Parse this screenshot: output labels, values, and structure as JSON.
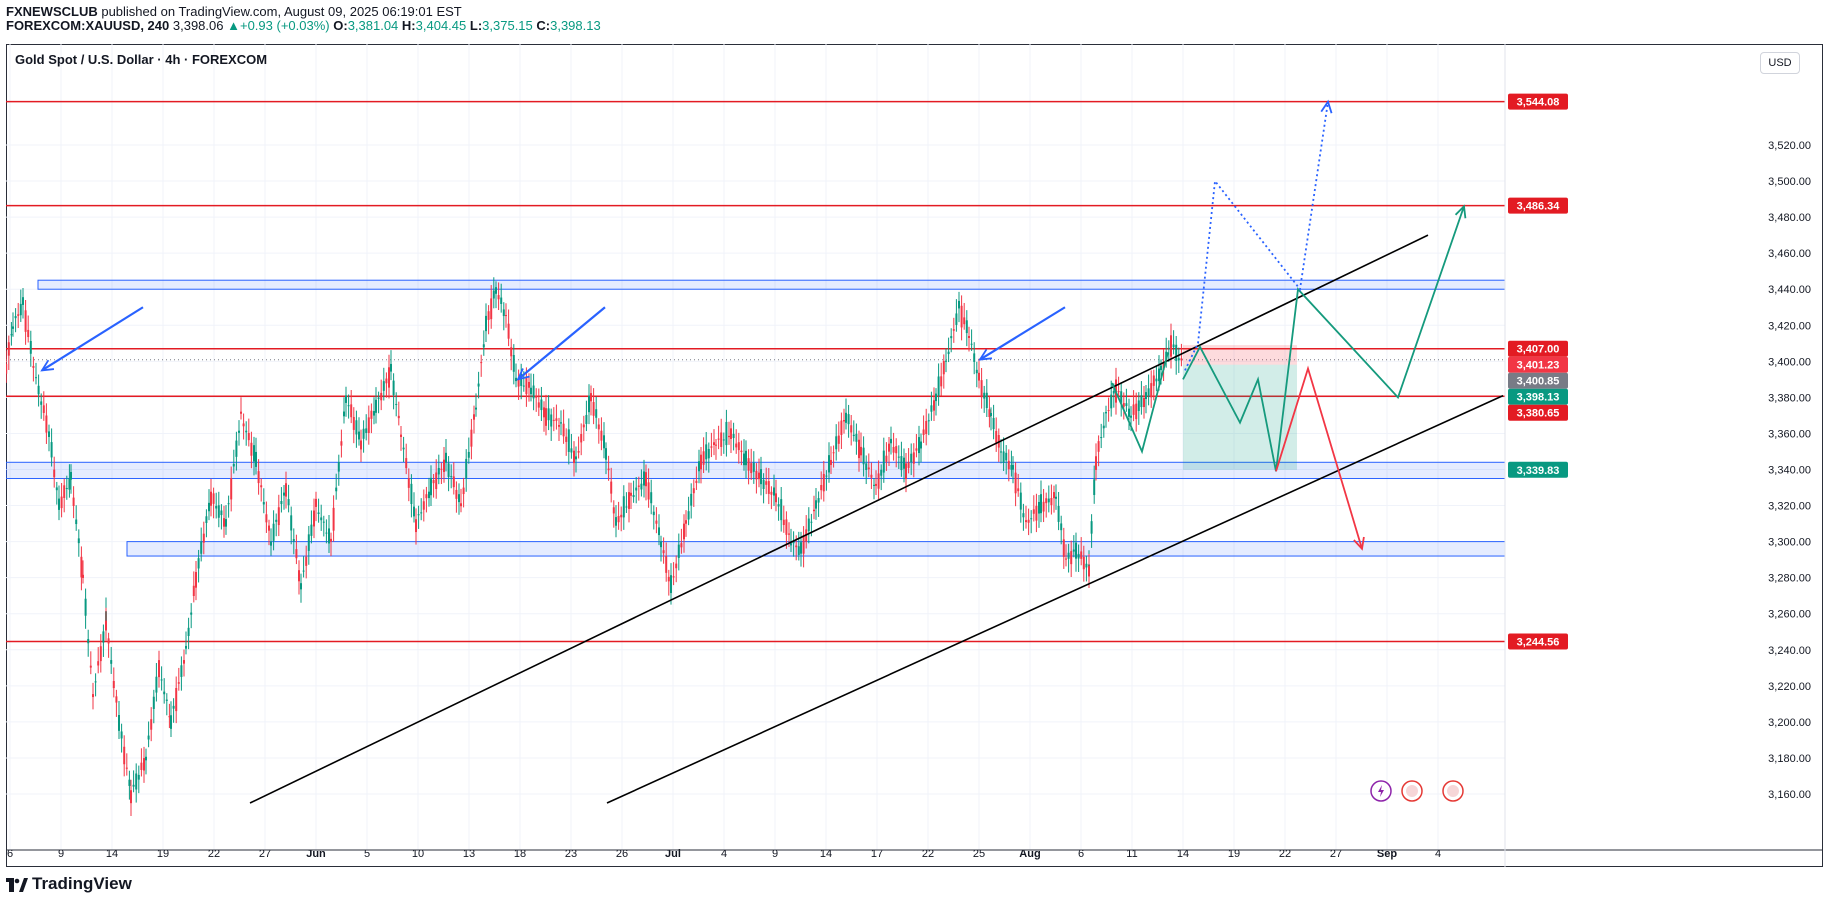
{
  "header": {
    "publisher": "FXNEWSCLUB",
    "published_text": "published on TradingView.com, August 09, 2025 06:19:01 EST",
    "symbol": "FOREXCOM:XAUUSD, 240",
    "price": "3,398.06",
    "change": "+0.93 (+0.03%)",
    "o_label": "O:",
    "o_value": "3,381.04",
    "h_label": "H:",
    "h_value": "3,404.45",
    "l_label": "L:",
    "l_value": "3,375.15",
    "c_label": "C:",
    "c_value": "3,398.13"
  },
  "chart_title": "Gold Spot / U.S. Dollar · 4h · FOREXCOM",
  "currency_button": "USD",
  "footer": {
    "brand": "TradingView"
  },
  "colors": {
    "up": "#089981",
    "down": "#f23645",
    "level": "#e31b23",
    "zone": "#2962ff",
    "projection_green": "#159a7d",
    "projection_blue": "#2962ff",
    "channel": "#000000"
  },
  "chart_data": {
    "type": "line",
    "title": "Gold Spot / U.S. Dollar · 4h · FOREXCOM",
    "ylim": [
      3145,
      3565
    ],
    "y_ticks": [
      3160,
      3180,
      3200,
      3220,
      3240,
      3260,
      3280,
      3300,
      3320,
      3340,
      3360,
      3380,
      3400,
      3420,
      3440,
      3460,
      3480,
      3500,
      3520
    ],
    "y_tick_labels": [
      "3,160.00",
      "3,180.00",
      "3,200.00",
      "3,220.00",
      "3,240.00",
      "3,260.00",
      "3,280.00",
      "3,300.00",
      "3,320.00",
      "3,340.00",
      "3,360.00",
      "3,380.00",
      "3,400.00",
      "3,420.00",
      "3,440.00",
      "3,460.00",
      "3,480.00",
      "3,500.00",
      "3,520.00"
    ],
    "x_ticks": [
      "6",
      "9",
      "14",
      "19",
      "22",
      "27",
      "Jun",
      "5",
      "10",
      "13",
      "18",
      "23",
      "26",
      "Jul",
      "4",
      "9",
      "14",
      "17",
      "22",
      "25",
      "Aug",
      "6",
      "11",
      "14",
      "19",
      "22",
      "27",
      "Sep",
      "4"
    ],
    "price_levels": [
      {
        "value": 3544.08,
        "label": "3,544.08",
        "kind": "level"
      },
      {
        "value": 3486.34,
        "label": "3,486.34",
        "kind": "level"
      },
      {
        "value": 3407.0,
        "label": "3,407.00",
        "kind": "level"
      },
      {
        "value": 3401.23,
        "label": "3,401.23",
        "kind": "stop"
      },
      {
        "value": 3400.85,
        "label": "3,400.85",
        "kind": "grey"
      },
      {
        "value": 3398.13,
        "label": "3,398.13",
        "kind": "last"
      },
      {
        "value": 3380.65,
        "label": "3,380.65",
        "kind": "level"
      },
      {
        "value": 3339.83,
        "label": "3,339.83",
        "kind": "target"
      },
      {
        "value": 3244.56,
        "label": "3,244.56",
        "kind": "level"
      }
    ],
    "zones": [
      [
        3440,
        3445
      ],
      [
        3335,
        3344
      ],
      [
        3292,
        3300
      ]
    ],
    "price_path": [
      [
        0,
        3380
      ],
      [
        12,
        3420
      ],
      [
        22,
        3432
      ],
      [
        35,
        3390
      ],
      [
        48,
        3360
      ],
      [
        58,
        3320
      ],
      [
        70,
        3335
      ],
      [
        82,
        3280
      ],
      [
        92,
        3215
      ],
      [
        105,
        3255
      ],
      [
        118,
        3200
      ],
      [
        130,
        3160
      ],
      [
        145,
        3180
      ],
      [
        158,
        3230
      ],
      [
        170,
        3200
      ],
      [
        185,
        3240
      ],
      [
        195,
        3280
      ],
      [
        210,
        3325
      ],
      [
        225,
        3310
      ],
      [
        240,
        3370
      ],
      [
        255,
        3345
      ],
      [
        270,
        3300
      ],
      [
        285,
        3330
      ],
      [
        300,
        3275
      ],
      [
        315,
        3320
      ],
      [
        330,
        3300
      ],
      [
        345,
        3380
      ],
      [
        360,
        3355
      ],
      [
        375,
        3375
      ],
      [
        390,
        3395
      ],
      [
        400,
        3360
      ],
      [
        415,
        3310
      ],
      [
        430,
        3330
      ],
      [
        445,
        3345
      ],
      [
        460,
        3320
      ],
      [
        475,
        3375
      ],
      [
        485,
        3420
      ],
      [
        495,
        3440
      ],
      [
        505,
        3425
      ],
      [
        515,
        3390
      ],
      [
        530,
        3385
      ],
      [
        545,
        3370
      ],
      [
        560,
        3365
      ],
      [
        575,
        3345
      ],
      [
        590,
        3380
      ],
      [
        605,
        3350
      ],
      [
        615,
        3310
      ],
      [
        630,
        3325
      ],
      [
        645,
        3335
      ],
      [
        660,
        3300
      ],
      [
        670,
        3275
      ],
      [
        685,
        3310
      ],
      [
        700,
        3345
      ],
      [
        715,
        3355
      ],
      [
        730,
        3360
      ],
      [
        745,
        3345
      ],
      [
        760,
        3335
      ],
      [
        775,
        3325
      ],
      [
        790,
        3300
      ],
      [
        800,
        3295
      ],
      [
        815,
        3320
      ],
      [
        830,
        3345
      ],
      [
        845,
        3370
      ],
      [
        860,
        3350
      ],
      [
        875,
        3330
      ],
      [
        890,
        3355
      ],
      [
        905,
        3340
      ],
      [
        920,
        3355
      ],
      [
        935,
        3380
      ],
      [
        945,
        3400
      ],
      [
        958,
        3430
      ],
      [
        968,
        3415
      ],
      [
        978,
        3390
      ],
      [
        990,
        3370
      ],
      [
        1000,
        3350
      ],
      [
        1012,
        3340
      ],
      [
        1025,
        3310
      ],
      [
        1040,
        3320
      ],
      [
        1055,
        3325
      ],
      [
        1065,
        3290
      ],
      [
        1075,
        3295
      ],
      [
        1088,
        3285
      ],
      [
        1095,
        3345
      ],
      [
        1105,
        3370
      ],
      [
        1115,
        3385
      ],
      [
        1130,
        3370
      ],
      [
        1145,
        3380
      ],
      [
        1160,
        3395
      ],
      [
        1170,
        3410
      ],
      [
        1182,
        3398
      ]
    ],
    "projection_green": [
      [
        1183,
        3390
      ],
      [
        1200,
        3408
      ],
      [
        1240,
        3366
      ],
      [
        1258,
        3390
      ],
      [
        1276,
        3339
      ],
      [
        1298,
        3440
      ],
      [
        1398,
        3380
      ],
      [
        1464,
        3486
      ]
    ],
    "projection_green_small": [
      [
        1112,
        3388
      ],
      [
        1142,
        3350
      ],
      [
        1168,
        3405
      ]
    ],
    "projection_red": [
      [
        1276,
        3339
      ],
      [
        1308,
        3396
      ],
      [
        1362,
        3296
      ]
    ],
    "projection_blue_dotted": [
      [
        1185,
        3395
      ],
      [
        1198,
        3410
      ],
      [
        1215,
        3500
      ],
      [
        1300,
        3440
      ],
      [
        1328,
        3544
      ]
    ],
    "trade_box": {
      "entry": 3398.13,
      "stop": 3407.0,
      "target": 3339.83
    },
    "channel_lines": [
      [
        [
          250,
          3155
        ],
        [
          1428,
          3470
        ]
      ],
      [
        [
          607,
          3155
        ],
        [
          1503,
          3381
        ]
      ]
    ],
    "arrows": [
      [
        [
          143,
          3430
        ],
        [
          42,
          3395
        ]
      ],
      [
        [
          605,
          3430
        ],
        [
          518,
          3390
        ]
      ],
      [
        [
          1065,
          3430
        ],
        [
          980,
          3401
        ]
      ]
    ]
  }
}
